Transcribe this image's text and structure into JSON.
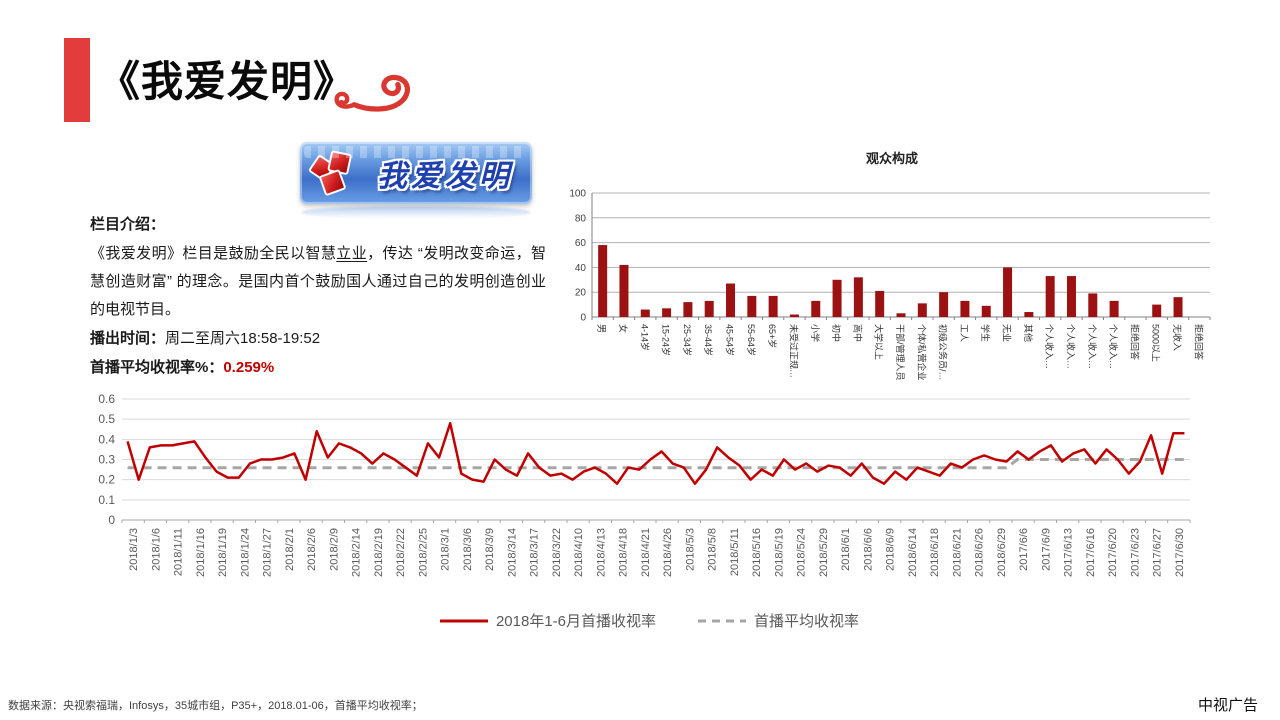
{
  "header": {
    "title": "《我爱发明》",
    "accent_color": "#e23c3c"
  },
  "logo": {
    "text": "我爱发明"
  },
  "intro": {
    "heading": "栏目介绍：",
    "body_part1": "《我爱发明》栏目是鼓励全民以智慧",
    "body_underlined": "立业",
    "body_part2": "，传达 “发明改变命运，智慧创造财富” 的理念。是国内首个鼓励国人通过自己的发明创造创业的电视节目。",
    "broadcast_label": "播出时间：",
    "broadcast_value": "周二至周六18:58-19:52",
    "rating_label": "首播平均收视率%：",
    "rating_value": "0.259%",
    "rating_color": "#c00000"
  },
  "footer": {
    "source": "数据来源：央视索福瑞，Infosys，35城市组，P35+，2018.01-06，首播平均收视率；",
    "brand": "中视广告"
  },
  "chart_data": [
    {
      "type": "bar",
      "title": "观众构成",
      "categories": [
        "男",
        "女",
        "4-14岁",
        "15-24岁",
        "25-34岁",
        "35-44岁",
        "45-54岁",
        "55-64岁",
        "65+岁",
        "未受过正规…",
        "小学",
        "初中",
        "高中",
        "大学以上",
        "干部/管理人员",
        "个体/私营企业",
        "初级公务员/…",
        "工人",
        "学生",
        "无业",
        "其他",
        "个人收入…",
        "个人收入…",
        "个人收入…",
        "个人收入…",
        "拒绝回答",
        "5000以上",
        "无收入",
        "拒绝回答"
      ],
      "values": [
        58,
        42,
        6,
        7,
        12,
        13,
        27,
        17,
        17,
        2,
        13,
        30,
        32,
        21,
        3,
        11,
        20,
        13,
        9,
        40,
        4,
        33,
        33,
        19,
        13,
        0,
        10,
        16,
        0
      ],
      "xlabel": "",
      "ylabel": "",
      "ylim": [
        0,
        100
      ],
      "yticks": [
        0,
        20,
        40,
        60,
        80,
        100
      ],
      "bar_color": "#9c1212",
      "grid": true,
      "legend": "none"
    },
    {
      "type": "line",
      "title": "",
      "xlabel": "",
      "ylabel": "",
      "ylim": [
        0,
        0.6
      ],
      "yticks": [
        0,
        0.1,
        0.2,
        0.3,
        0.4,
        0.5,
        0.6
      ],
      "grid": true,
      "legend_position": "bottom",
      "points_per_label": 2,
      "x_labels": [
        "2018/1/3",
        "2018/1/6",
        "2018/1/11",
        "2018/1/16",
        "2018/1/19",
        "2018/1/24",
        "2018/1/27",
        "2018/2/1",
        "2018/2/6",
        "2018/2/9",
        "2018/2/14",
        "2018/2/19",
        "2018/2/22",
        "2018/2/25",
        "2018/3/1",
        "2018/3/6",
        "2018/3/9",
        "2018/3/14",
        "2018/3/17",
        "2018/3/22",
        "2018/4/10",
        "2018/4/13",
        "2018/4/18",
        "2018/4/21",
        "2018/4/26",
        "2018/5/3",
        "2018/5/8",
        "2018/5/11",
        "2018/5/16",
        "2018/5/19",
        "2018/5/24",
        "2018/5/29",
        "2018/6/1",
        "2018/6/6",
        "2018/6/9",
        "2018/6/14",
        "2018/6/18",
        "2018/6/21",
        "2018/6/26",
        "2018/6/29",
        "2017/6/6",
        "2017/6/9",
        "2017/6/13",
        "2017/6/16",
        "2017/6/20",
        "2017/6/23",
        "2017/6/27",
        "2017/6/30"
      ],
      "series": [
        {
          "name": "2018年1-6月首播收视率",
          "color": "#c00000",
          "style": "solid",
          "values": [
            0.39,
            0.2,
            0.36,
            0.37,
            0.37,
            0.38,
            0.39,
            0.31,
            0.24,
            0.21,
            0.21,
            0.28,
            0.3,
            0.3,
            0.31,
            0.33,
            0.2,
            0.44,
            0.31,
            0.38,
            0.36,
            0.33,
            0.28,
            0.33,
            0.3,
            0.26,
            0.22,
            0.38,
            0.31,
            0.48,
            0.23,
            0.2,
            0.19,
            0.3,
            0.25,
            0.22,
            0.33,
            0.26,
            0.22,
            0.23,
            0.2,
            0.24,
            0.26,
            0.23,
            0.18,
            0.26,
            0.25,
            0.3,
            0.34,
            0.28,
            0.26,
            0.18,
            0.25,
            0.36,
            0.31,
            0.27,
            0.2,
            0.25,
            0.22,
            0.3,
            0.25,
            0.28,
            0.24,
            0.27,
            0.26,
            0.22,
            0.28,
            0.21,
            0.18,
            0.24,
            0.2,
            0.26,
            0.24,
            0.22,
            0.28,
            0.26,
            0.3,
            0.32,
            0.3,
            0.29,
            0.34,
            0.3,
            0.34,
            0.37,
            0.29,
            0.33,
            0.35,
            0.28,
            0.35,
            0.3,
            0.23,
            0.29,
            0.42,
            0.23,
            0.43,
            0.43
          ]
        },
        {
          "name": "首播平均收视率",
          "color": "#a6a6a6",
          "style": "dashed",
          "segments": [
            {
              "start_point": 0,
              "end_point": 80,
              "value": 0.259
            },
            {
              "start_point": 80,
              "end_point": 96,
              "value": 0.3
            }
          ]
        }
      ]
    }
  ]
}
